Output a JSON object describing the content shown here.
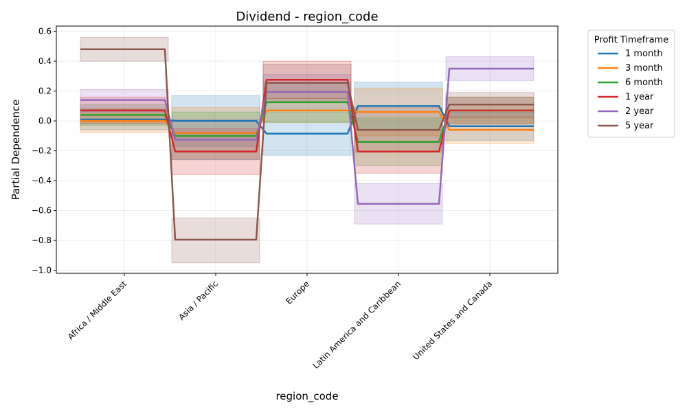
{
  "chart_data": {
    "type": "line",
    "title": "Dividend - region_code",
    "xlabel": "region_code",
    "ylabel": "Partial Dependence",
    "categories": [
      "Africa / Middle East",
      "Asia / Pacific",
      "Europe",
      "Latin America and Caribbean",
      "United States and Canada"
    ],
    "ylim": [
      -1.02,
      0.635
    ],
    "yticks": [
      -1.0,
      -0.8,
      -0.6,
      -0.4,
      -0.2,
      0.0,
      0.2,
      0.4,
      0.6
    ],
    "ytick_labels": [
      "−1.0",
      "−0.8",
      "−0.6",
      "−0.4",
      "−0.2",
      "0.0",
      "0.2",
      "0.4",
      "0.6"
    ],
    "grid": true,
    "legend": {
      "title": "Profit Timeframe",
      "placement": "outside-right"
    },
    "series": [
      {
        "name": "1 month",
        "color": "#1f77b4",
        "values": [
          0.01,
          0.0,
          -0.085,
          0.1,
          -0.035
        ],
        "lower": [
          -0.06,
          -0.17,
          -0.23,
          -0.06,
          -0.13
        ],
        "upper": [
          0.08,
          0.17,
          0.06,
          0.26,
          0.06
        ]
      },
      {
        "name": "3 month",
        "color": "#ff7f0e",
        "values": [
          0.0,
          -0.08,
          0.07,
          0.06,
          -0.06
        ],
        "lower": [
          -0.08,
          -0.25,
          -0.01,
          -0.1,
          -0.15
        ],
        "upper": [
          0.08,
          0.09,
          0.15,
          0.22,
          0.03
        ]
      },
      {
        "name": "6 month",
        "color": "#2ca02c",
        "values": [
          0.04,
          -0.1,
          0.125,
          -0.14,
          0.07
        ],
        "lower": [
          -0.03,
          -0.26,
          -0.01,
          -0.3,
          -0.02
        ],
        "upper": [
          0.11,
          0.06,
          0.26,
          0.02,
          0.16
        ]
      },
      {
        "name": "1 year",
        "color": "#d62728",
        "values": [
          0.07,
          -0.205,
          0.275,
          -0.205,
          0.07
        ],
        "lower": [
          -0.02,
          -0.36,
          0.15,
          -0.35,
          -0.02
        ],
        "upper": [
          0.16,
          -0.05,
          0.4,
          -0.06,
          0.16
        ]
      },
      {
        "name": "2 year",
        "color": "#9467bd",
        "values": [
          0.14,
          -0.125,
          0.195,
          -0.555,
          0.35
        ],
        "lower": [
          0.06,
          -0.26,
          0.08,
          -0.69,
          0.27
        ],
        "upper": [
          0.21,
          0.01,
          0.31,
          -0.42,
          0.43
        ]
      },
      {
        "name": "5 year",
        "color": "#8c564b",
        "values": [
          0.48,
          -0.795,
          0.255,
          -0.06,
          0.11
        ],
        "lower": [
          0.4,
          -0.95,
          0.13,
          -0.21,
          0.02
        ],
        "upper": [
          0.56,
          -0.65,
          0.38,
          0.09,
          0.19
        ]
      }
    ]
  }
}
